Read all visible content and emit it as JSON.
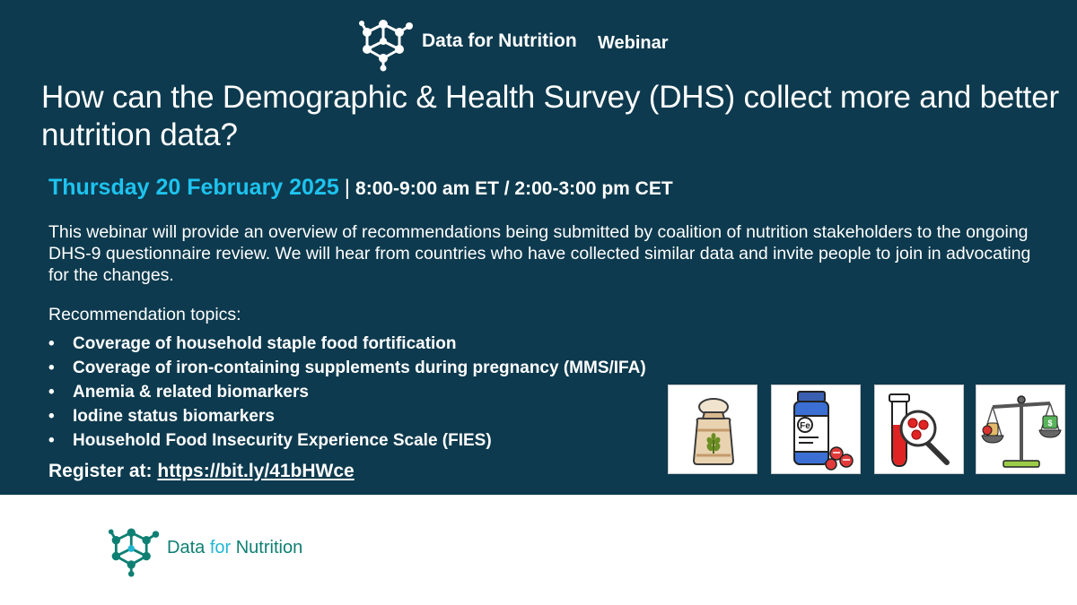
{
  "header": {
    "brand_name": "Data for Nutrition",
    "brand_suffix": "Webinar",
    "logo_icon": "molecule-network-icon"
  },
  "title": "How can the Demographic & Health Survey (DHS) collect more and better nutrition data?",
  "schedule": {
    "date": "Thursday 20 February 2025",
    "separator": "|",
    "time": "8:00-9:00 am ET / 2:00-3:00 pm CET"
  },
  "description": "This webinar will provide an overview of recommendations being submitted by coalition of nutrition stakeholders to the ongoing DHS-9 questionnaire review.  We will hear from countries who have collected similar data and invite people to join in advocating for the changes.",
  "topics": {
    "heading": "Recommendation topics:",
    "items": [
      "Coverage of household staple food fortification",
      "Coverage of iron-containing supplements during pregnancy (MMS/IFA)",
      "Anemia & related biomarkers",
      "Iodine status biomarkers",
      "Household Food Insecurity Experience Scale (FIES)"
    ]
  },
  "register": {
    "label": "Register at:",
    "url": "https://bit.ly/41bHWce"
  },
  "icons": {
    "flour_sack": "flour-sack-icon",
    "iron_supplement": "iron-supplement-bottle-icon",
    "blood_test": "blood-test-tube-icon",
    "food_scale": "food-balance-scale-icon",
    "iron_bottle_label": "Fe"
  },
  "footer": {
    "brand_part1": "Data",
    "brand_part2": "for",
    "brand_part3": "Nutrition"
  },
  "colors": {
    "banner_background": "#0d3a4e",
    "accent_cyan": "#1ec3ef",
    "footer_teal": "#0e7f73"
  }
}
